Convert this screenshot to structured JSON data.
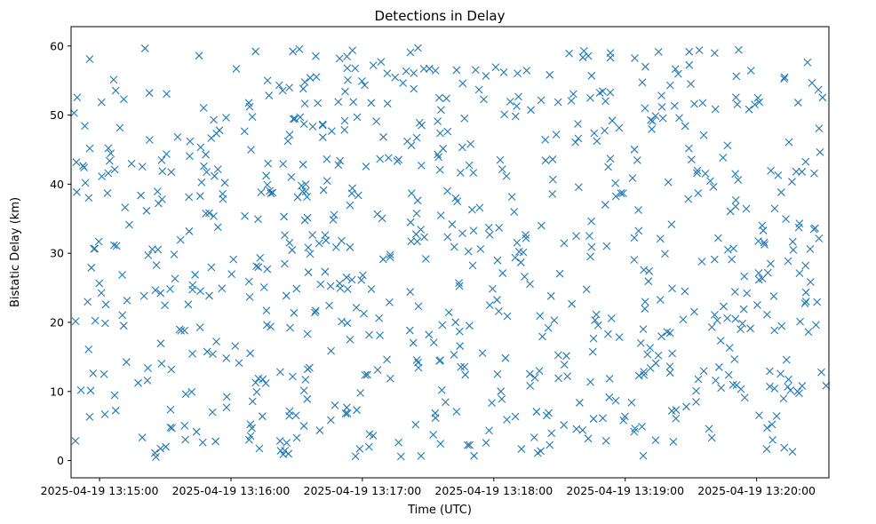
{
  "chart_data": {
    "type": "scatter",
    "title": "Detections in Delay",
    "xlabel": "Time (UTC)",
    "ylabel": "Bistatic Delay (km)",
    "marker": "x",
    "color": "#1f77b4",
    "grid": false,
    "x_unit": "seconds after 2025-04-19 13:14:00 UTC",
    "xlim": [
      47,
      393
    ],
    "ylim": [
      -2.5,
      62.8
    ],
    "x_ticks": [
      {
        "value": 60,
        "label": "2025-04-19 13:15:00"
      },
      {
        "value": 120,
        "label": "2025-04-19 13:16:00"
      },
      {
        "value": 180,
        "label": "2025-04-19 13:17:00"
      },
      {
        "value": 240,
        "label": "2025-04-19 13:18:00"
      },
      {
        "value": 300,
        "label": "2025-04-19 13:19:00"
      },
      {
        "value": 360,
        "label": "2025-04-19 13:20:00"
      }
    ],
    "y_ticks": [
      {
        "value": 0,
        "label": "0"
      },
      {
        "value": 10,
        "label": "10"
      },
      {
        "value": 20,
        "label": "20"
      },
      {
        "value": 30,
        "label": "30"
      },
      {
        "value": 40,
        "label": "40"
      },
      {
        "value": 50,
        "label": "50"
      },
      {
        "value": 60,
        "label": "60"
      }
    ],
    "point_count": 800,
    "x_range": [
      48.3,
      391.7
    ],
    "y_range": [
      0.5,
      59.9
    ],
    "points_x": [],
    "points_y": []
  }
}
